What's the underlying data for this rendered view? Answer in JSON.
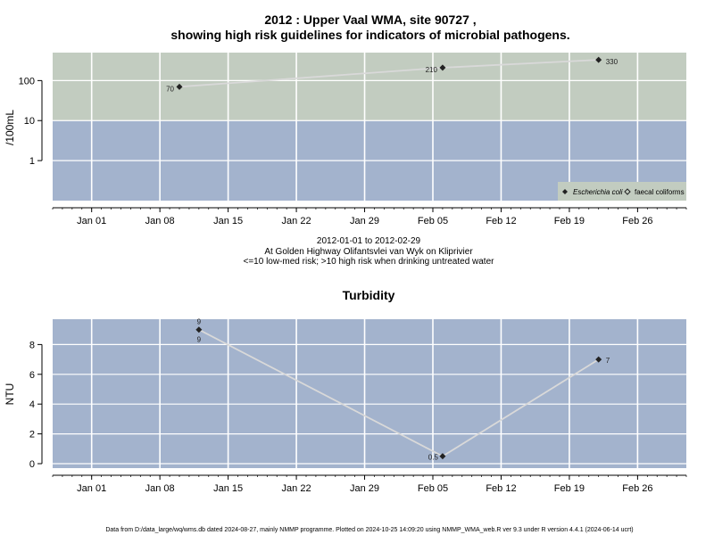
{
  "figure": {
    "title_line1": "2012 : Upper Vaal WMA, site 90727 ,",
    "title_line2": "showing high risk guidelines for indicators of microbial pathogens.",
    "subtitle_lines": [
      "2012-01-01 to 2012-02-29",
      "At Golden Highway Olifantsvlei van Wyk on Kliprivier",
      "<=10 low-med risk; >10 high risk when drinking untreated water"
    ],
    "footer": "Data from D:/data_large/wq/wms.db dated 2024-08-27, mainly NMMP programme. Plotted on 2024-10-25 14:09:20 using NMMP_WMA_web.R ver 9.3 under R version 4.4.1 (2024-06-14 ucrt)"
  },
  "colors": {
    "high_risk_band": "#c2ccc0",
    "low_risk_band": "#a3b3cd",
    "grid": "#ffffff",
    "line": "#d9d9d9",
    "point": "#222222"
  },
  "chart_data": [
    {
      "type": "line",
      "title": "",
      "xlabel": "",
      "ylabel": "/100mL",
      "y_scale": "log",
      "ylim": [
        0.1,
        500
      ],
      "ytick_labels": [
        "1",
        "10",
        "100"
      ],
      "ytick_values": [
        1,
        10,
        100
      ],
      "x_start": "2011-12-28",
      "x_end": "2012-03-02",
      "xtick_labels": [
        "Jan 01",
        "Jan 08",
        "Jan 15",
        "Jan 22",
        "Jan 29",
        "Feb 05",
        "Feb 12",
        "Feb 19",
        "Feb 26"
      ],
      "xtick_dates": [
        "2012-01-01",
        "2012-01-08",
        "2012-01-15",
        "2012-01-22",
        "2012-01-29",
        "2012-02-05",
        "2012-02-12",
        "2012-02-19",
        "2012-02-26"
      ],
      "risk_threshold": 10,
      "series": [
        {
          "name": "Escherichia coli",
          "x": [
            "2012-01-10",
            "2012-02-06",
            "2012-02-22"
          ],
          "values": [
            70,
            210,
            330
          ],
          "labels": [
            "70",
            "210",
            "330"
          ]
        }
      ],
      "legend": {
        "position": "bottom-right",
        "entries": [
          {
            "name": "Escherichia coli",
            "marker": "filled-diamond",
            "italic": true
          },
          {
            "name": "faecal coliforms",
            "marker": "open-diamond",
            "italic": false
          }
        ]
      },
      "grid": true
    },
    {
      "type": "line",
      "title": "Turbidity",
      "xlabel": "",
      "ylabel": "NTU",
      "ylim": [
        -0.3,
        9.7
      ],
      "ytick_labels": [
        "0",
        "2",
        "4",
        "6",
        "8"
      ],
      "ytick_values": [
        0,
        2,
        4,
        6,
        8
      ],
      "x_start": "2011-12-28",
      "x_end": "2012-03-02",
      "xtick_labels": [
        "Jan 01",
        "Jan 08",
        "Jan 15",
        "Jan 22",
        "Jan 29",
        "Feb 05",
        "Feb 12",
        "Feb 19",
        "Feb 26"
      ],
      "xtick_dates": [
        "2012-01-01",
        "2012-01-08",
        "2012-01-15",
        "2012-01-22",
        "2012-01-29",
        "2012-02-05",
        "2012-02-12",
        "2012-02-19",
        "2012-02-26"
      ],
      "series": [
        {
          "name": "",
          "x": [
            "2012-01-12",
            "2012-02-06",
            "2012-02-22"
          ],
          "values": [
            9,
            0.5,
            7
          ],
          "labels": [
            "9",
            "0.5",
            "7"
          ]
        }
      ],
      "grid": true
    }
  ]
}
